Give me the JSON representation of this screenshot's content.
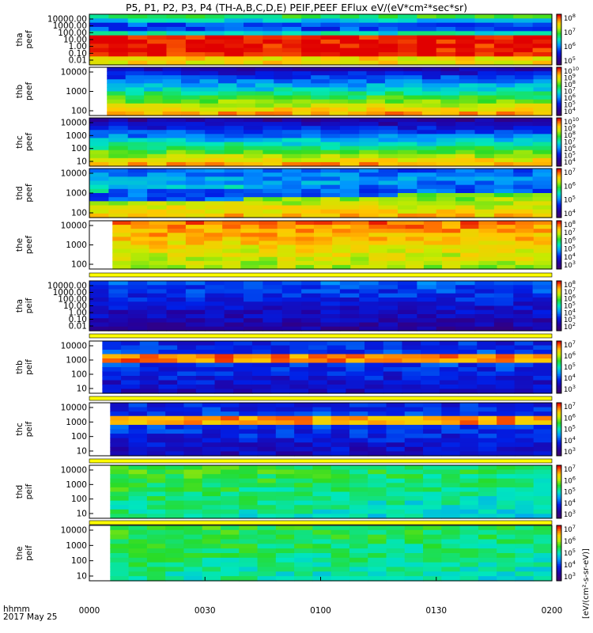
{
  "title": "P5, P1, P2, P3, P4 (TH-A,B,C,D,E) PEIF,PEEF EFlux eV/(eV*cm²*sec*sr)",
  "colorbar_unit": "[eV/(cm²-s-sr-eV)]",
  "x_caption": {
    "line1": "hhmm",
    "line2": "2017 May 25"
  },
  "x_ticks": [
    "0000",
    "0030",
    "0100",
    "0130",
    "0200"
  ],
  "chart_data": {
    "type": "heatmap",
    "x_range": [
      "0000",
      "0200"
    ],
    "y_scale": "log",
    "panels": [
      {
        "probe": "tha",
        "species": "peef",
        "ylabel": [
          "tha",
          "peef"
        ],
        "y_ticks": [
          "10000.00",
          "1000.00",
          "100.00",
          "10.00",
          "1.00",
          "0.10",
          "0.01"
        ],
        "cbar_exponents": [
          8,
          7,
          6,
          5
        ],
        "pattern": "tha_e",
        "gap_start": 0
      },
      {
        "probe": "thb",
        "species": "peef",
        "ylabel": [
          "thb",
          "peef"
        ],
        "y_ticks": [
          "10000",
          "1000",
          "100"
        ],
        "cbar_exponents": [
          10,
          9,
          8,
          7,
          6,
          5,
          4
        ],
        "pattern": "thb_e",
        "gap_start": 0.038
      },
      {
        "probe": "thc",
        "species": "peef",
        "ylabel": [
          "thc",
          "peef"
        ],
        "y_ticks": [
          "10000",
          "1000",
          "100",
          "10"
        ],
        "cbar_exponents": [
          10,
          9,
          8,
          7,
          6,
          5,
          4
        ],
        "pattern": "thc_e",
        "gap_start": 0
      },
      {
        "probe": "thd",
        "species": "peef",
        "ylabel": [
          "thd",
          "peef"
        ],
        "y_ticks": [
          "10000",
          "1000",
          "100"
        ],
        "cbar_exponents": [
          7,
          6,
          5,
          4
        ],
        "pattern": "thd_e",
        "gap_start": 0
      },
      {
        "probe": "the",
        "species": "peef",
        "ylabel": [
          "the",
          "peef"
        ],
        "y_ticks": [
          "10000",
          "1000",
          "100"
        ],
        "cbar_exponents": [
          8,
          7,
          6,
          5,
          4,
          3
        ],
        "pattern": "the_e",
        "gap_start": 0.05
      },
      {
        "probe": "tha",
        "species": "peif",
        "ylabel": [
          "tha",
          "peif"
        ],
        "y_ticks": [
          "10000.00",
          "1000.00",
          "100.00",
          "10.00",
          "1.00",
          "0.10",
          "0.01"
        ],
        "cbar_exponents": [
          8,
          7,
          6,
          5,
          4,
          3,
          2
        ],
        "pattern": "tha_i",
        "gap_start": 0
      },
      {
        "probe": "thb",
        "species": "peif",
        "ylabel": [
          "thb",
          "peif"
        ],
        "y_ticks": [
          "10000",
          "1000",
          "100",
          "10"
        ],
        "cbar_exponents": [
          7,
          6,
          5,
          4,
          3
        ],
        "pattern": "thb_i",
        "gap_start": 0.028
      },
      {
        "probe": "thc",
        "species": "peif",
        "ylabel": [
          "thc",
          "peif"
        ],
        "y_ticks": [
          "10000",
          "1000",
          "100",
          "10"
        ],
        "cbar_exponents": [
          7,
          6,
          5,
          4,
          3
        ],
        "pattern": "thc_i",
        "gap_start": 0.045
      },
      {
        "probe": "thd",
        "species": "peif",
        "ylabel": [
          "thd",
          "peif"
        ],
        "y_ticks": [
          "10000",
          "1000",
          "100",
          "10"
        ],
        "cbar_exponents": [
          7,
          6,
          5,
          4,
          3
        ],
        "pattern": "thd_i",
        "gap_start": 0.045
      },
      {
        "probe": "the",
        "species": "peif",
        "ylabel": [
          "the",
          "peif"
        ],
        "y_ticks": [
          "10000",
          "1000",
          "100",
          "10"
        ],
        "cbar_exponents": [
          7,
          6,
          5,
          4,
          3
        ],
        "pattern": "the_i",
        "gap_start": 0.045
      }
    ]
  }
}
